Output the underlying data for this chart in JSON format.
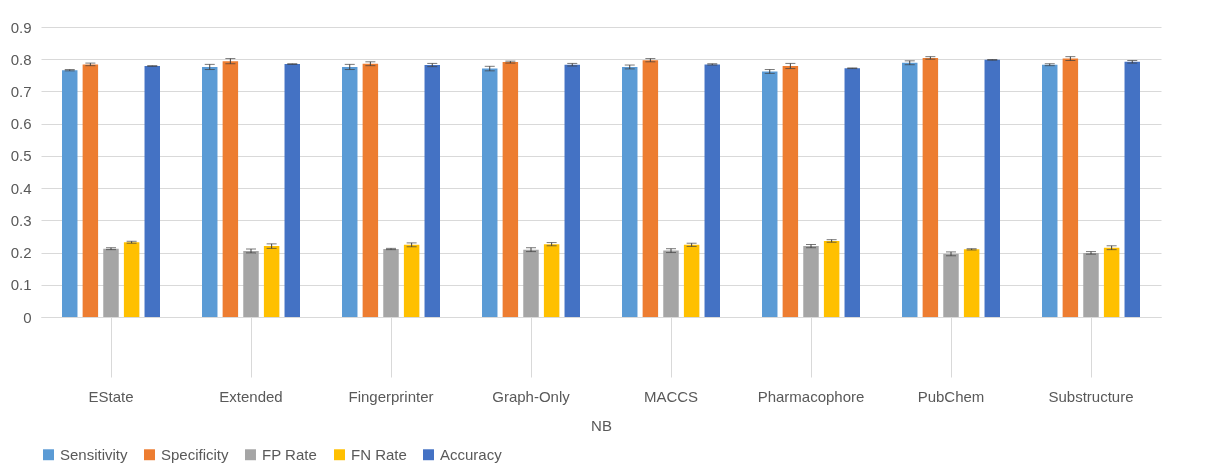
{
  "chart_data": {
    "type": "bar",
    "xlabel": "NB",
    "categories": [
      "EState",
      "Extended",
      "Fingerprinter",
      "Graph-Only",
      "MACCS",
      "Pharmacophore",
      "PubChem",
      "Substructure"
    ],
    "series": [
      {
        "name": "Sensitivity",
        "color": "#5b9bd5",
        "values": [
          0.766,
          0.776,
          0.776,
          0.771,
          0.776,
          0.762,
          0.789,
          0.783
        ],
        "errors": [
          0.002,
          0.008,
          0.008,
          0.007,
          0.006,
          0.006,
          0.006,
          0.003
        ]
      },
      {
        "name": "Specificity",
        "color": "#ed7d31",
        "values": [
          0.784,
          0.794,
          0.786,
          0.791,
          0.797,
          0.779,
          0.804,
          0.802
        ],
        "errors": [
          0.004,
          0.008,
          0.006,
          0.003,
          0.005,
          0.008,
          0.004,
          0.006
        ]
      },
      {
        "name": "FP Rate",
        "color": "#a5a5a5",
        "values": [
          0.212,
          0.205,
          0.211,
          0.209,
          0.206,
          0.22,
          0.196,
          0.199
        ],
        "errors": [
          0.003,
          0.006,
          0.002,
          0.006,
          0.006,
          0.005,
          0.006,
          0.004
        ]
      },
      {
        "name": "FN Rate",
        "color": "#ffc000",
        "values": [
          0.232,
          0.22,
          0.224,
          0.226,
          0.224,
          0.236,
          0.21,
          0.215
        ],
        "errors": [
          0.003,
          0.007,
          0.006,
          0.005,
          0.005,
          0.004,
          0.002,
          0.006
        ]
      },
      {
        "name": "Accuracy",
        "color": "#4472c4",
        "values": [
          0.779,
          0.785,
          0.782,
          0.783,
          0.784,
          0.772,
          0.798,
          0.792
        ],
        "errors": [
          0.001,
          0.001,
          0.005,
          0.004,
          0.002,
          0.001,
          0.001,
          0.004
        ]
      }
    ],
    "ylim": [
      0,
      0.9
    ],
    "yticks": [
      0,
      0.1,
      0.2,
      0.3,
      0.4,
      0.5,
      0.6,
      0.7,
      0.8,
      0.9
    ],
    "grid": "y",
    "legend": "bottom"
  }
}
